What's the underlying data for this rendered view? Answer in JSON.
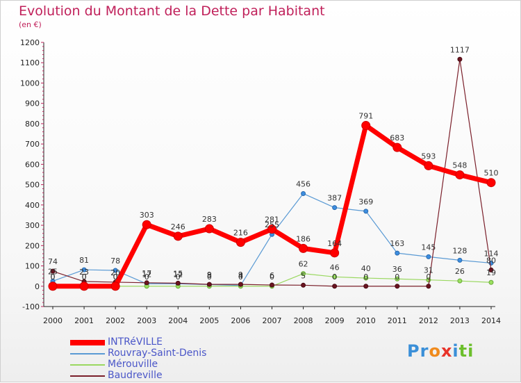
{
  "title": "Evolution du Montant de la Dette par Habitant",
  "subtitle": "(en €)",
  "brand": {
    "letters": [
      {
        "ch": "P",
        "color": "#3a8fd8"
      },
      {
        "ch": "r",
        "color": "#3a8fd8"
      },
      {
        "ch": "o",
        "color": "#f08a1c"
      },
      {
        "ch": "x",
        "color": "#e8332a"
      },
      {
        "ch": "i",
        "color": "#3a8fd8"
      },
      {
        "ch": "t",
        "color": "#6cbf2c"
      },
      {
        "ch": "i",
        "color": "#6cbf2c"
      }
    ]
  },
  "chart_data": {
    "type": "line",
    "x": [
      "2000",
      "2001",
      "2002",
      "2003",
      "2004",
      "2005",
      "2006",
      "2007",
      "2008",
      "2009",
      "2010",
      "2011",
      "2012",
      "2013",
      "2014"
    ],
    "ylim": [
      -100,
      1200
    ],
    "yticks": [
      -100,
      0,
      100,
      200,
      300,
      400,
      500,
      600,
      700,
      800,
      900,
      1000,
      1100,
      1200
    ],
    "grid": false,
    "legend_position": "bottom-left",
    "series": [
      {
        "name": "INTRéVILLE",
        "color": "#ff0000",
        "values": [
          0,
          0,
          0,
          303,
          246,
          283,
          216,
          281,
          186,
          164,
          791,
          683,
          593,
          548,
          510
        ],
        "labels": [
          "0",
          "0",
          "0",
          "303",
          "246",
          "283",
          "216",
          "281",
          "186",
          "164",
          "791",
          "683",
          "593",
          "548",
          "510"
        ]
      },
      {
        "name": "Rouvray-Saint-Denis",
        "color": "#5a9ad4",
        "values": [
          25,
          81,
          78,
          12,
          12,
          8,
          4,
          255,
          456,
          387,
          369,
          163,
          145,
          128,
          114
        ],
        "labels": [
          "25",
          "81",
          "78",
          "12",
          "12",
          "8",
          "4",
          "255",
          "456",
          "387",
          "369",
          "163",
          "145",
          "128",
          "114"
        ]
      },
      {
        "name": "Mérouville",
        "color": "#9ad860",
        "values": [
          0,
          0,
          0,
          0,
          0,
          0,
          0,
          0,
          62,
          46,
          40,
          36,
          31,
          26,
          19
        ],
        "labels": [
          "0",
          "0",
          "0",
          "0",
          "0",
          "0",
          "0",
          "0",
          "62",
          "46",
          "40",
          "36",
          "31",
          "26",
          "19"
        ]
      },
      {
        "name": "Baudreville",
        "color": "#7a1f2a",
        "values": [
          74,
          23,
          20,
          17,
          15,
          9,
          9,
          6,
          5,
          0,
          0,
          0,
          0,
          1117,
          80
        ],
        "labels": [
          "74",
          "23",
          "20",
          "17",
          "15",
          "9",
          "9",
          "6",
          "5",
          "0",
          "0",
          "0",
          "0",
          "1117",
          "80"
        ]
      }
    ]
  }
}
